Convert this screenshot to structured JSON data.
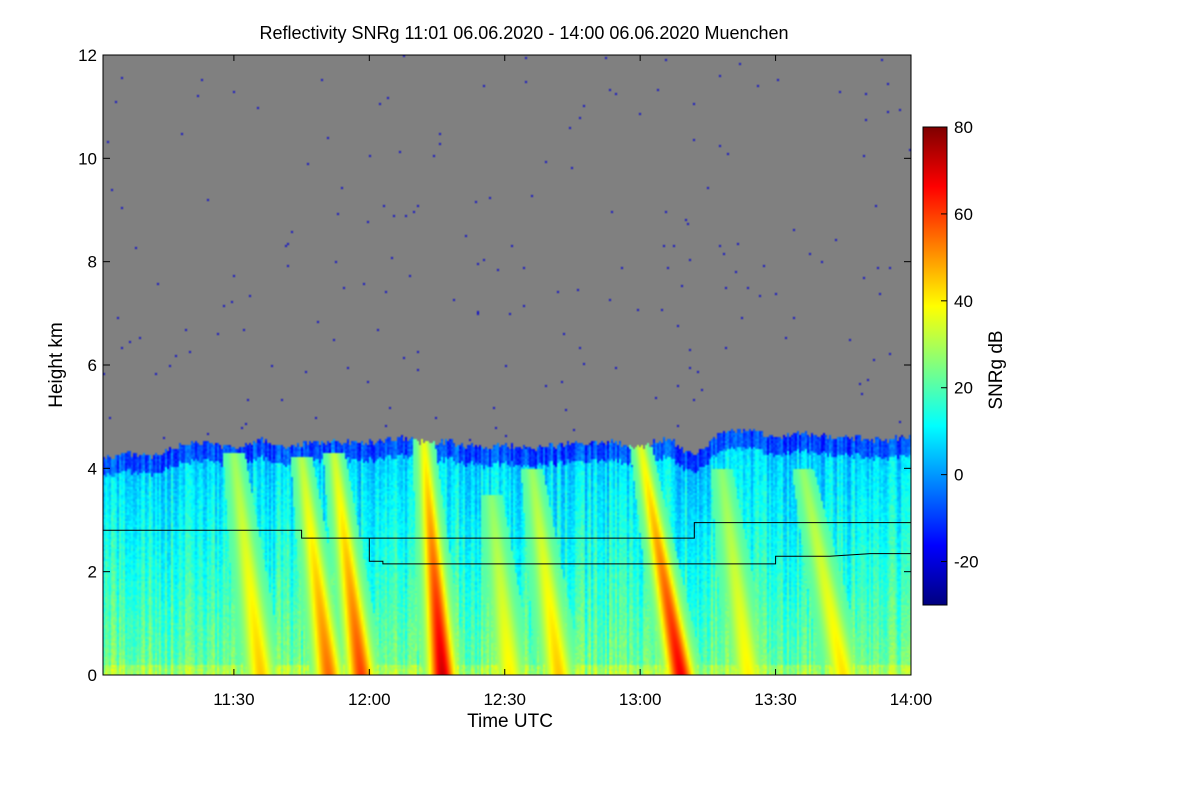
{
  "chart_data": {
    "type": "heatmap",
    "title": "Reflectivity SNRg   11:01 06.06.2020 - 14:00 06.06.2020 Muenchen",
    "xlabel": "Time UTC",
    "ylabel": "Height km",
    "colorbar_label": "SNRg dB",
    "xlim": [
      11.0167,
      14.0
    ],
    "ylim": [
      0,
      12
    ],
    "x_ticks": [
      11.5,
      12.0,
      12.5,
      13.0,
      13.5,
      14.0
    ],
    "x_tick_labels": [
      "11:30",
      "12:00",
      "12:30",
      "13:00",
      "13:30",
      "14:00"
    ],
    "y_ticks": [
      0,
      2,
      4,
      6,
      8,
      10,
      12
    ],
    "y_tick_labels": [
      "0",
      "2",
      "4",
      "6",
      "8",
      "10",
      "12"
    ],
    "colorbar_range": [
      -30,
      80
    ],
    "colorbar_ticks": [
      -20,
      0,
      20,
      40,
      60,
      80
    ],
    "colorbar_tick_labels": [
      "-20",
      "0",
      "20",
      "40",
      "60",
      "80"
    ],
    "colormap": [
      "#00007f",
      "#0000ff",
      "#0080ff",
      "#00ffff",
      "#80ff80",
      "#ffff00",
      "#ff8000",
      "#ff0000",
      "#7f0000"
    ],
    "no_data_color": "#808080",
    "echo_top_km": [
      [
        11.02,
        4.2
      ],
      [
        11.1,
        4.3
      ],
      [
        11.2,
        4.2
      ],
      [
        11.3,
        4.45
      ],
      [
        11.4,
        4.5
      ],
      [
        11.5,
        4.4
      ],
      [
        11.6,
        4.55
      ],
      [
        11.7,
        4.4
      ],
      [
        11.8,
        4.5
      ],
      [
        11.9,
        4.5
      ],
      [
        12.0,
        4.5
      ],
      [
        12.1,
        4.6
      ],
      [
        12.2,
        4.5
      ],
      [
        12.3,
        4.5
      ],
      [
        12.4,
        4.4
      ],
      [
        12.5,
        4.45
      ],
      [
        12.6,
        4.4
      ],
      [
        12.7,
        4.45
      ],
      [
        12.8,
        4.5
      ],
      [
        12.9,
        4.5
      ],
      [
        13.0,
        4.4
      ],
      [
        13.1,
        4.6
      ],
      [
        13.2,
        4.2
      ],
      [
        13.3,
        4.7
      ],
      [
        13.4,
        4.75
      ],
      [
        13.5,
        4.6
      ],
      [
        13.6,
        4.7
      ],
      [
        13.7,
        4.6
      ],
      [
        13.8,
        4.6
      ],
      [
        13.9,
        4.55
      ],
      [
        14.0,
        4.6
      ]
    ],
    "fall_streaks": [
      {
        "top_time": 11.5,
        "base_time": 11.6,
        "top_km": 4.3,
        "peak_db": 45
      },
      {
        "top_time": 11.75,
        "base_time": 11.85,
        "top_km": 4.2,
        "peak_db": 55
      },
      {
        "top_time": 11.87,
        "base_time": 11.97,
        "top_km": 4.3,
        "peak_db": 60
      },
      {
        "top_time": 12.2,
        "base_time": 12.27,
        "top_km": 4.6,
        "peak_db": 72
      },
      {
        "top_time": 12.45,
        "base_time": 12.52,
        "top_km": 3.5,
        "peak_db": 40
      },
      {
        "top_time": 12.6,
        "base_time": 12.7,
        "top_km": 4.0,
        "peak_db": 45
      },
      {
        "top_time": 13.0,
        "base_time": 13.15,
        "top_km": 4.5,
        "peak_db": 68
      },
      {
        "top_time": 13.3,
        "base_time": 13.4,
        "top_km": 4.0,
        "peak_db": 40
      },
      {
        "top_time": 13.6,
        "base_time": 13.75,
        "top_km": 4.0,
        "peak_db": 42
      }
    ],
    "melting_layer_line_1": [
      [
        11.0167,
        2.8
      ],
      [
        11.75,
        2.8
      ],
      [
        11.75,
        2.65
      ],
      [
        13.2,
        2.65
      ],
      [
        13.2,
        2.95
      ],
      [
        14.0,
        2.95
      ]
    ],
    "melting_layer_line_2": [
      [
        12.0,
        2.65
      ],
      [
        12.0,
        2.2
      ],
      [
        12.05,
        2.2
      ],
      [
        12.05,
        2.15
      ],
      [
        13.5,
        2.15
      ],
      [
        13.5,
        2.3
      ],
      [
        13.7,
        2.3
      ],
      [
        13.85,
        2.35
      ],
      [
        14.0,
        2.35
      ]
    ]
  }
}
